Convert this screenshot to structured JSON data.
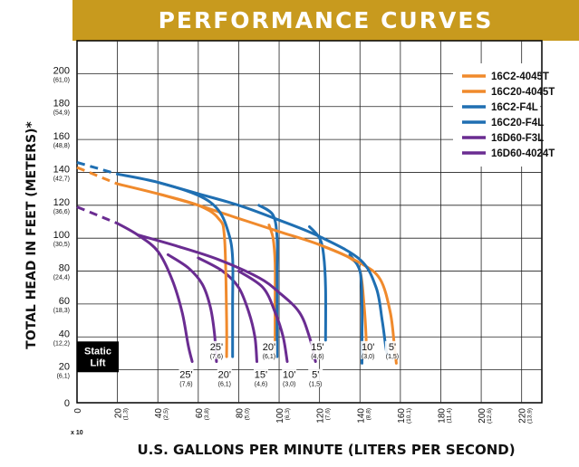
{
  "chart_data": {
    "type": "line",
    "title": "PERFORMANCE CURVES",
    "xlabel": "U.S. GALLONS PER MINUTE (LITERS PER SECOND)",
    "ylabel": "TOTAL HEAD IN FEET (METERS)*",
    "x_multiplier_label": "x 10",
    "xlim": [
      0,
      230
    ],
    "ylim": [
      0,
      220
    ],
    "grid": true,
    "legend_position": "top-right",
    "x_ticks": [
      {
        "value": 0,
        "label": "0",
        "sub": ""
      },
      {
        "value": 20,
        "label": "20",
        "sub": "(1,3)"
      },
      {
        "value": 40,
        "label": "40",
        "sub": "(2,5)"
      },
      {
        "value": 60,
        "label": "60",
        "sub": "(3,8)"
      },
      {
        "value": 80,
        "label": "80",
        "sub": "(5,0)"
      },
      {
        "value": 100,
        "label": "100",
        "sub": "(6,3)"
      },
      {
        "value": 120,
        "label": "120",
        "sub": "(7,6)"
      },
      {
        "value": 140,
        "label": "140",
        "sub": "(8,8)"
      },
      {
        "value": 160,
        "label": "160",
        "sub": "(10,1)"
      },
      {
        "value": 180,
        "label": "180",
        "sub": "(11,4)"
      },
      {
        "value": 200,
        "label": "200",
        "sub": "(12,6)"
      },
      {
        "value": 220,
        "label": "220",
        "sub": "(13,9)"
      }
    ],
    "y_ticks": [
      {
        "value": 0,
        "label": "0",
        "sub": ""
      },
      {
        "value": 20,
        "label": "20",
        "sub": "(6,1)"
      },
      {
        "value": 40,
        "label": "40",
        "sub": "(12,2)"
      },
      {
        "value": 60,
        "label": "60",
        "sub": "(18,3)"
      },
      {
        "value": 80,
        "label": "80",
        "sub": "(24,4)"
      },
      {
        "value": 100,
        "label": "100",
        "sub": "(30,5)"
      },
      {
        "value": 120,
        "label": "120",
        "sub": "(36,6)"
      },
      {
        "value": 140,
        "label": "140",
        "sub": "(42,7)"
      },
      {
        "value": 160,
        "label": "160",
        "sub": "(48,8)"
      },
      {
        "value": 180,
        "label": "180",
        "sub": "(54,9)"
      },
      {
        "value": 200,
        "label": "200",
        "sub": "(61,0)"
      }
    ],
    "static_lift_label": [
      "Static",
      "Lift"
    ],
    "series": [
      {
        "name": "16C2-4045T",
        "color": "#f08a2c",
        "main": [
          [
            20,
            133
          ],
          [
            40,
            127
          ],
          [
            60,
            120
          ],
          [
            70,
            112
          ],
          [
            73,
            100
          ],
          [
            74,
            50
          ],
          [
            74,
            28
          ]
        ],
        "dashed": [
          [
            0,
            143
          ],
          [
            20,
            133
          ]
        ]
      },
      {
        "name": "16C20-4045T",
        "color": "#f08a2c",
        "main": [
          [
            40,
            127
          ],
          [
            60,
            120
          ],
          [
            80,
            112
          ],
          [
            100,
            104
          ],
          [
            120,
            96
          ],
          [
            140,
            85
          ],
          [
            150,
            75
          ],
          [
            155,
            55
          ],
          [
            157,
            35
          ],
          [
            158,
            24
          ]
        ],
        "dashed": []
      },
      {
        "name": "16C2-F4L",
        "color": "#1f6fb2",
        "main": [
          [
            20,
            139
          ],
          [
            40,
            134
          ],
          [
            60,
            126
          ],
          [
            70,
            117
          ],
          [
            75,
            103
          ],
          [
            77,
            88
          ],
          [
            77,
            60
          ],
          [
            77,
            28
          ]
        ],
        "dashed": [
          [
            0,
            146
          ],
          [
            20,
            139
          ]
        ]
      },
      {
        "name": "16C20-F4L",
        "color": "#1f6fb2",
        "main": [
          [
            40,
            134
          ],
          [
            60,
            127
          ],
          [
            80,
            120
          ],
          [
            100,
            111
          ],
          [
            120,
            101
          ],
          [
            140,
            87
          ],
          [
            148,
            70
          ],
          [
            151,
            50
          ],
          [
            153,
            32
          ],
          [
            154,
            29
          ]
        ],
        "dashed": []
      },
      {
        "name": "16D60-F3L",
        "color": "#6a2c91",
        "main": [
          [
            20,
            109
          ],
          [
            30,
            102
          ],
          [
            40,
            92
          ],
          [
            47,
            75
          ],
          [
            52,
            55
          ],
          [
            55,
            35
          ],
          [
            57,
            25
          ]
        ],
        "dashed": [
          [
            0,
            119
          ],
          [
            20,
            109
          ]
        ]
      },
      {
        "name": "16D60-4024T",
        "color": "#6a2c91",
        "main": [
          [
            30,
            102
          ],
          [
            50,
            95
          ],
          [
            70,
            87
          ],
          [
            90,
            76
          ],
          [
            100,
            67
          ],
          [
            110,
            55
          ],
          [
            115,
            40
          ],
          [
            118,
            25
          ]
        ],
        "dashed": []
      }
    ],
    "branch_curves": [
      {
        "color": "#f08a2c",
        "points": [
          [
            95,
            108
          ],
          [
            97,
            100
          ],
          [
            98,
            85
          ],
          [
            98,
            60
          ],
          [
            98,
            28
          ]
        ]
      },
      {
        "color": "#f08a2c",
        "points": [
          [
            120,
            96
          ],
          [
            135,
            88
          ],
          [
            140,
            80
          ],
          [
            142,
            60
          ],
          [
            143,
            40
          ],
          [
            143,
            28
          ]
        ]
      },
      {
        "color": "#1f6fb2",
        "points": [
          [
            90,
            120
          ],
          [
            97,
            114
          ],
          [
            99,
            100
          ],
          [
            99,
            80
          ],
          [
            99,
            60
          ],
          [
            99,
            28
          ]
        ]
      },
      {
        "color": "#1f6fb2",
        "points": [
          [
            115,
            107
          ],
          [
            120,
            100
          ],
          [
            122,
            90
          ],
          [
            123,
            70
          ],
          [
            123,
            38
          ]
        ]
      },
      {
        "color": "#1f6fb2",
        "points": [
          [
            135,
            90
          ],
          [
            140,
            80
          ],
          [
            141,
            60
          ],
          [
            141,
            40
          ],
          [
            141,
            24
          ]
        ]
      },
      {
        "color": "#6a2c91",
        "points": [
          [
            45,
            90
          ],
          [
            55,
            82
          ],
          [
            62,
            72
          ],
          [
            66,
            58
          ],
          [
            68,
            42
          ],
          [
            69,
            25
          ]
        ]
      },
      {
        "color": "#6a2c91",
        "points": [
          [
            60,
            88
          ],
          [
            72,
            80
          ],
          [
            80,
            70
          ],
          [
            85,
            55
          ],
          [
            88,
            40
          ],
          [
            89,
            25
          ]
        ]
      },
      {
        "color": "#6a2c91",
        "points": [
          [
            80,
            80
          ],
          [
            92,
            70
          ],
          [
            98,
            55
          ],
          [
            102,
            40
          ],
          [
            104,
            25
          ]
        ]
      }
    ],
    "lift_labels": [
      {
        "x": 69,
        "y": 32,
        "text": "25'",
        "sub": "(7,6)"
      },
      {
        "x": 95,
        "y": 32,
        "text": "20'",
        "sub": "(6,1)"
      },
      {
        "x": 119,
        "y": 32,
        "text": "15'",
        "sub": "(4,6)"
      },
      {
        "x": 144,
        "y": 32,
        "text": "10'",
        "sub": "(3,0)"
      },
      {
        "x": 156,
        "y": 32,
        "text": "5'",
        "sub": "(1,5)"
      },
      {
        "x": 54,
        "y": 15,
        "text": "25'",
        "sub": "(7,6)"
      },
      {
        "x": 73,
        "y": 15,
        "text": "20'",
        "sub": "(6,1)"
      },
      {
        "x": 91,
        "y": 15,
        "text": "15'",
        "sub": "(4,6)"
      },
      {
        "x": 105,
        "y": 15,
        "text": "10'",
        "sub": "(3,0)"
      },
      {
        "x": 118,
        "y": 15,
        "text": "5'",
        "sub": "(1,5)"
      }
    ]
  }
}
